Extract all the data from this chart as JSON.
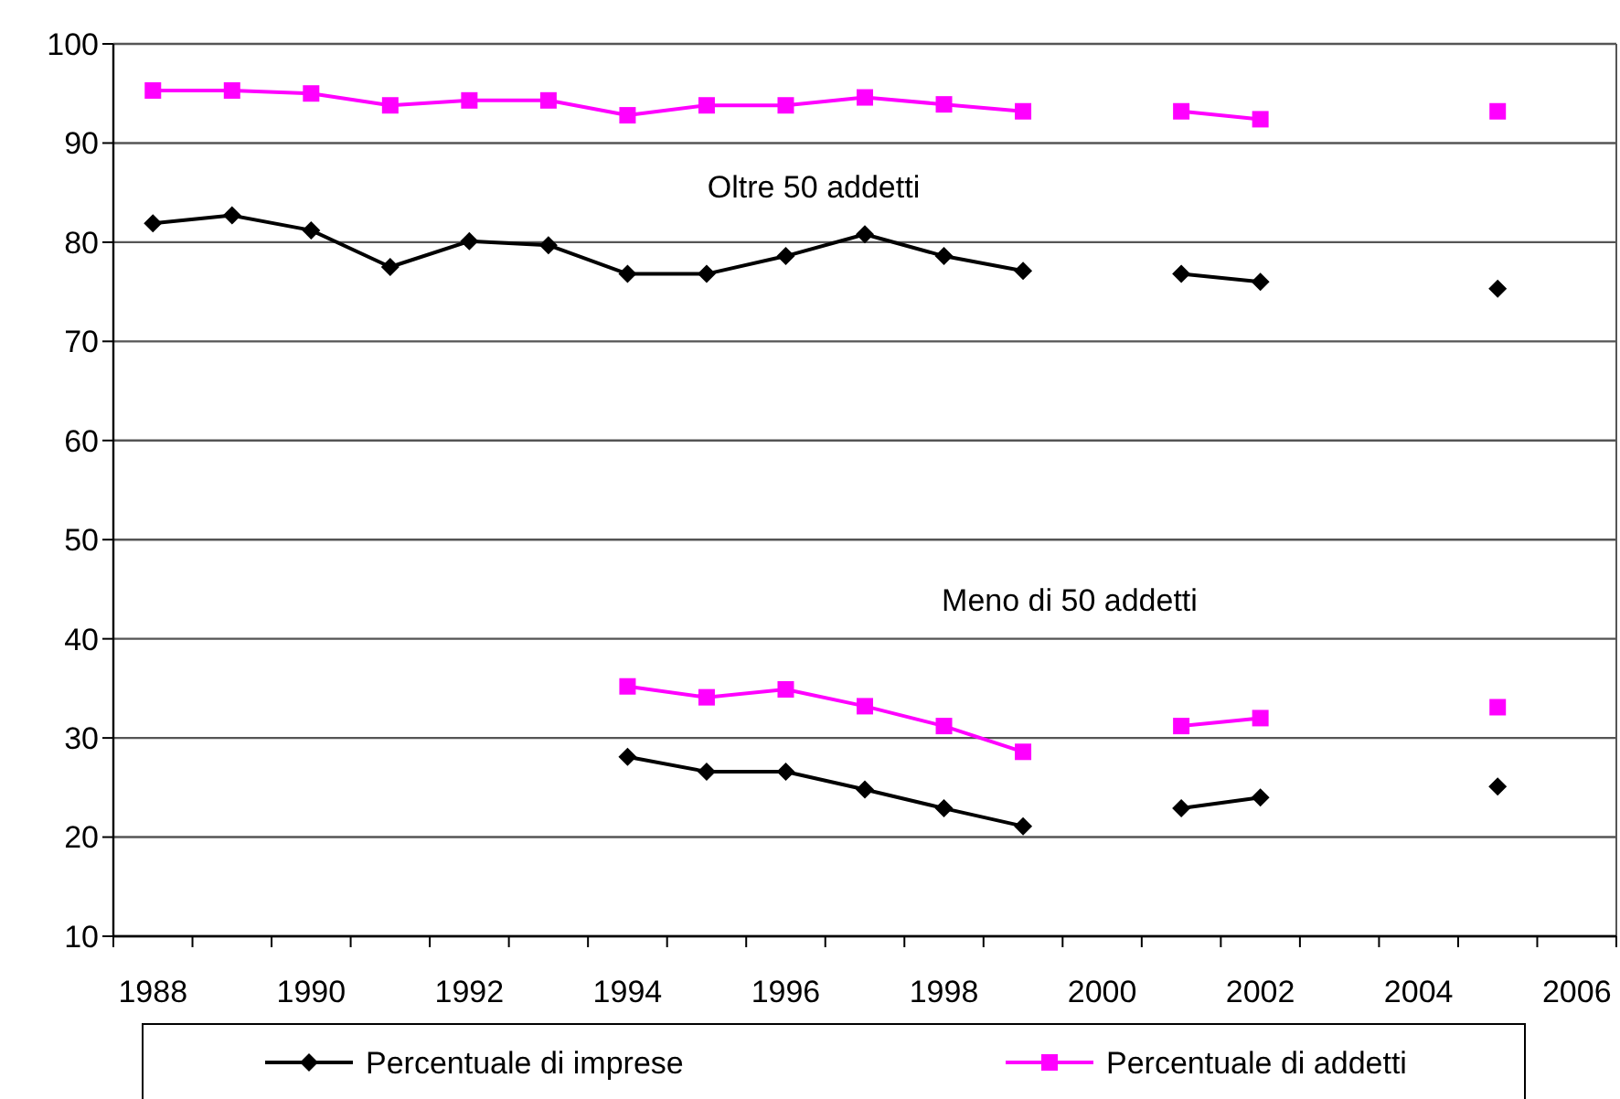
{
  "chart_data": {
    "type": "line",
    "categories": [
      "1988",
      null,
      "1990",
      null,
      "1992",
      null,
      "1994",
      null,
      "1996",
      null,
      "1998",
      null,
      "2000",
      null,
      "2002",
      null,
      "2004",
      null,
      "2006"
    ],
    "series": [
      {
        "name": "Percentuale di imprese",
        "color": "#000000",
        "marker": "diamond",
        "values": [
          81.9,
          82.7,
          81.2,
          77.5,
          80.1,
          79.7,
          76.8,
          76.8,
          78.6,
          80.8,
          78.6,
          77.1,
          null,
          76.8,
          76.0,
          null,
          null,
          75.3,
          null
        ]
      },
      {
        "name": "Percentuale di addetti",
        "color": "#ff00ff",
        "marker": "square",
        "values": [
          95.3,
          95.3,
          95.0,
          93.8,
          94.3,
          94.3,
          92.8,
          93.8,
          93.8,
          94.6,
          93.9,
          93.2,
          null,
          93.2,
          92.4,
          null,
          null,
          93.2,
          null
        ]
      },
      {
        "color": "#000000",
        "marker": "diamond",
        "values": [
          null,
          null,
          null,
          null,
          null,
          null,
          28.1,
          26.6,
          26.6,
          24.8,
          22.9,
          21.1,
          null,
          22.9,
          24.0,
          null,
          null,
          25.1,
          null
        ]
      },
      {
        "color": "#ff00ff",
        "marker": "square",
        "values": [
          null,
          null,
          null,
          null,
          null,
          null,
          35.2,
          34.1,
          34.9,
          33.2,
          31.2,
          28.6,
          null,
          31.2,
          32.0,
          null,
          null,
          33.1,
          null
        ]
      }
    ],
    "ylim": [
      10,
      100
    ],
    "yticks": [
      10,
      20,
      30,
      40,
      50,
      60,
      70,
      80,
      90,
      100
    ],
    "grid": "y",
    "legend": "bottom",
    "annotations": [
      "Oltre 50 addetti",
      "Meno di 50 addetti"
    ]
  }
}
